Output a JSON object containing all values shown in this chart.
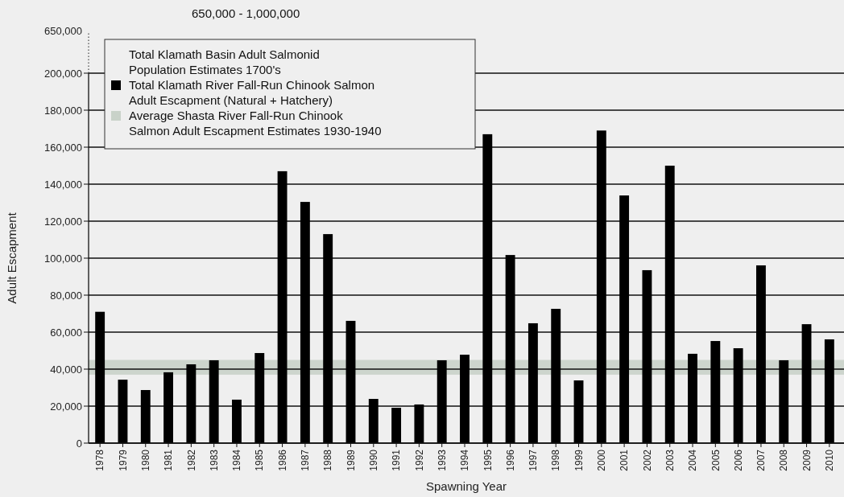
{
  "chart_data": {
    "type": "bar",
    "xlabel": "Spawning Year",
    "ylabel": "Adult Escapment",
    "categories": [
      "1978",
      "1979",
      "1980",
      "1981",
      "1982",
      "1983",
      "1984",
      "1985",
      "1986",
      "1987",
      "1988",
      "1989",
      "1990",
      "1991",
      "1992",
      "1993",
      "1994",
      "1995",
      "1996",
      "1997",
      "1998",
      "1999",
      "2000",
      "2001",
      "2002",
      "2003",
      "2004",
      "2005",
      "2006",
      "2007",
      "2008",
      "2009",
      "2010"
    ],
    "series": [
      {
        "name": "Total Klamath River Fall-Run Chinook Salmon Adult Escapment (Natural + Hatchery)",
        "color": "#000000",
        "values": [
          71000,
          34300,
          28700,
          38300,
          42600,
          44800,
          23500,
          48700,
          147000,
          130400,
          113000,
          66100,
          23900,
          19100,
          20900,
          44800,
          47800,
          167000,
          101700,
          64800,
          72600,
          33900,
          169000,
          133900,
          93500,
          150000,
          48300,
          55200,
          51300,
          96100,
          44800,
          64300,
          56100
        ]
      }
    ],
    "ylim": [
      0,
      200000
    ],
    "yticks": [
      {
        "value": 0,
        "label": "0"
      },
      {
        "value": 20000,
        "label": "20,000"
      },
      {
        "value": 40000,
        "label": "40,000"
      },
      {
        "value": 60000,
        "label": "60,000"
      },
      {
        "value": 80000,
        "label": "80,000"
      },
      {
        "value": 100000,
        "label": "100,000"
      },
      {
        "value": 120000,
        "label": "120,000"
      },
      {
        "value": 140000,
        "label": "140,000"
      },
      {
        "value": 160000,
        "label": "160,000"
      },
      {
        "value": 180000,
        "label": "180,000"
      },
      {
        "value": 200000,
        "label": "200,000"
      }
    ],
    "bands": [
      {
        "axis": "y",
        "from": 37000,
        "to": 45000,
        "label": "Average Shasta River Fall-Run Chinook Salmon Adult Escapment Estimates 1930-1940",
        "color": "#c9d2c9"
      }
    ],
    "annotations": [
      "Total Klamath Basin Adult Salmonid Population Estimates 1700's",
      "650,000 - 1,000,000",
      "650,000"
    ],
    "grid": "y",
    "legend": "top left"
  }
}
